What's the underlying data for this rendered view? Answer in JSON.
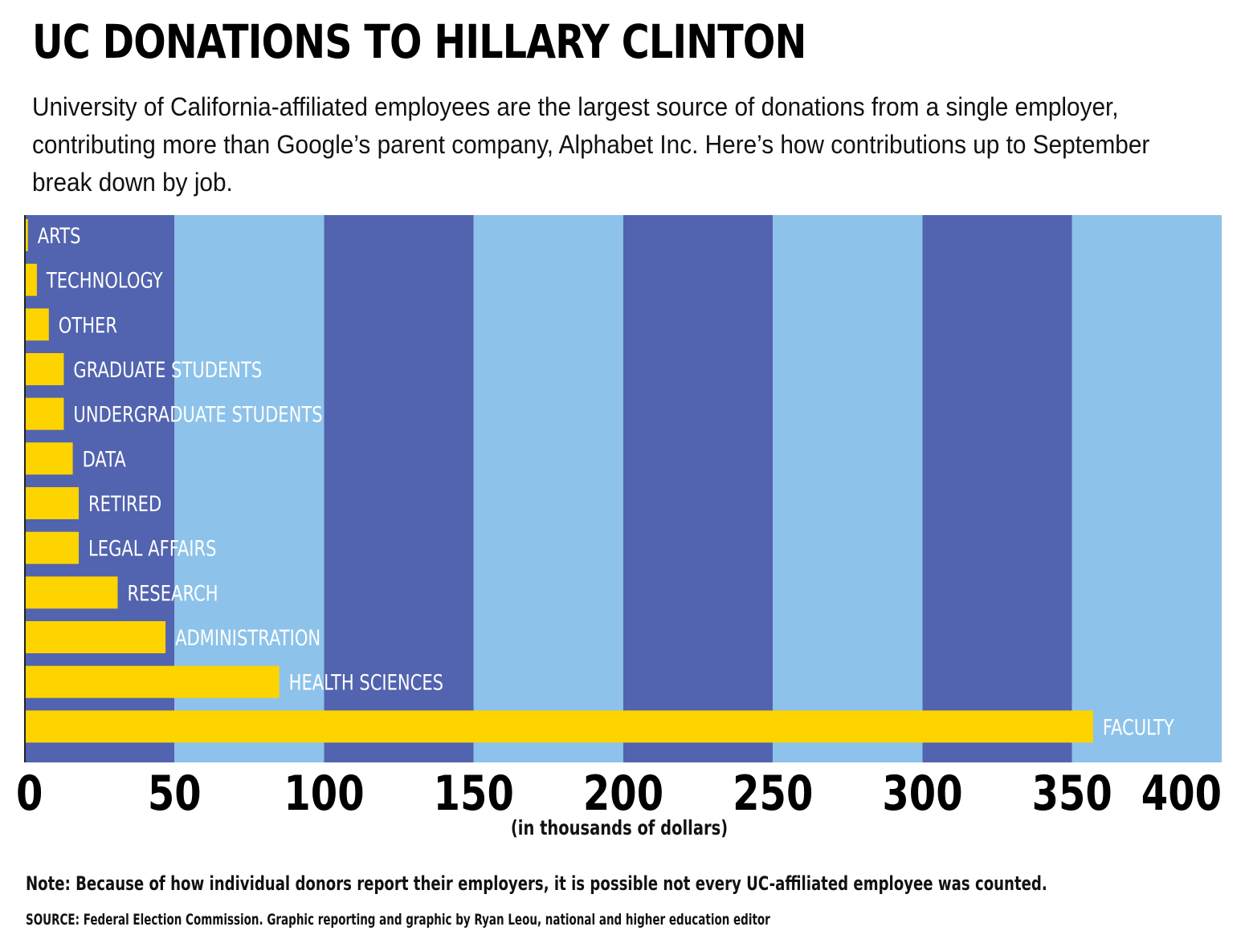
{
  "title": "UC DONATIONS TO HILLARY CLINTON",
  "subtitle": "University of California-affiliated employees are the largest source of donations from a single employer, contributing more than Google’s parent company, Alphabet Inc. Here’s how contributions up to September break down by job.",
  "note": "Note: Because of how individual donors report their employers, it is possible not every UC-affiliated employee was counted.",
  "source": "SOURCE: Federal Election Commission. Graphic reporting and graphic by Ryan Leou, national and higher education editor",
  "colors": {
    "bar": "#FDD400",
    "band_dark": "#5263AF",
    "band_light": "#8DC3EA",
    "label": "#FFFFFF",
    "axis_text": "#000000"
  },
  "chart_data": {
    "type": "bar",
    "orientation": "horizontal",
    "title": "UC DONATIONS TO HILLARY CLINTON",
    "xlabel": "(in thousands of dollars)",
    "ylabel": "",
    "xlim": [
      0,
      400
    ],
    "xticks": [
      "0",
      "50",
      "100",
      "150",
      "200",
      "250",
      "300",
      "350",
      "400"
    ],
    "categories": [
      "ARTS",
      "TECHNOLOGY",
      "OTHER",
      "GRADUATE STUDENTS",
      "UNDERGRADUATE STUDENTS",
      "DATA",
      "RETIRED",
      "LEGAL AFFAIRS",
      "RESEARCH",
      "ADMINISTRATION",
      "HEALTH SCIENCES",
      "FACULTY"
    ],
    "values": [
      1,
      4,
      8,
      13,
      13,
      16,
      18,
      18,
      31,
      47,
      85,
      357
    ],
    "grid": false,
    "legend": "none"
  }
}
